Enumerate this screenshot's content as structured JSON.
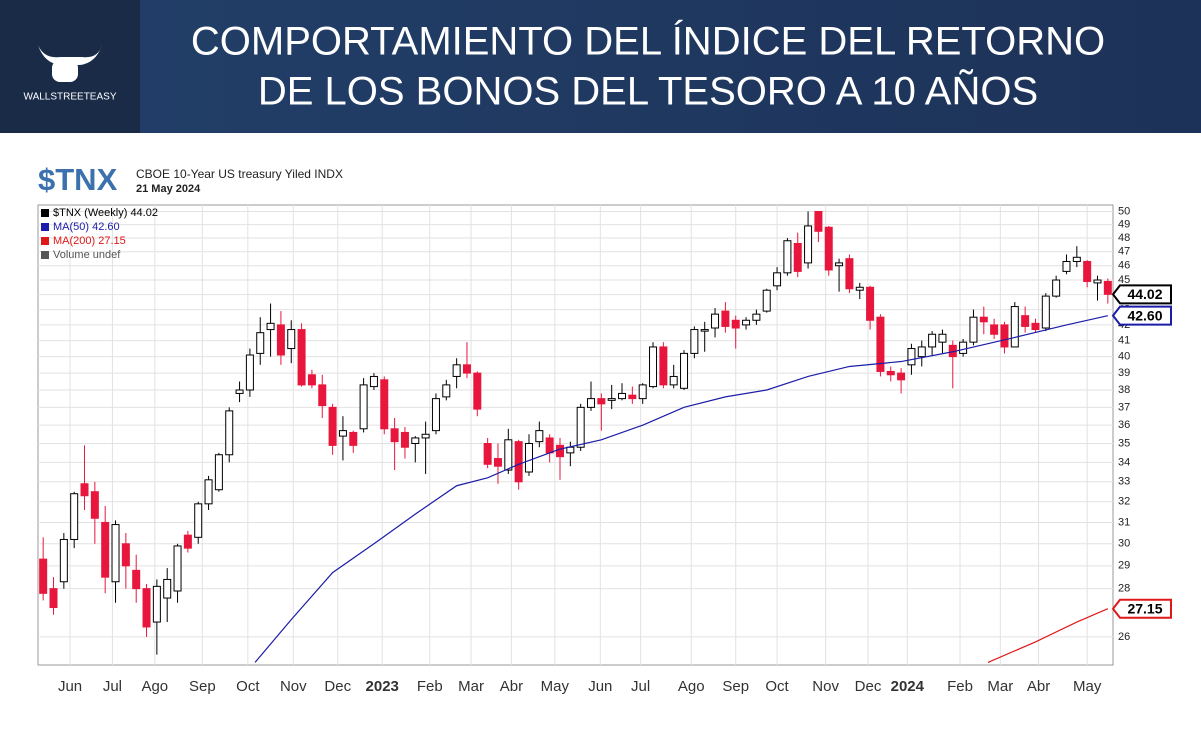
{
  "header": {
    "logo": "WALLSTREETEASY",
    "title_lines": [
      "COMPORTAMIENTO DEL ÍNDICE DEL RETORNO",
      "DE LOS BONOS DEL TESORO A 10 AÑOS"
    ]
  },
  "chart_data": {
    "type": "candlestick",
    "symbol": "$TNX",
    "subtitle": "CBOE 10-Year US treasury Yiled INDX",
    "date": "21 May 2024",
    "name": "$TNX (Weekly)",
    "end_label": "44.02",
    "up_color": "#ffffff",
    "down_color": "#e8163c",
    "volume_note": "Volume undef",
    "ohlc": [
      [
        29.3,
        30.3,
        27.5,
        27.8
      ],
      [
        28.0,
        28.5,
        26.9,
        27.2
      ],
      [
        28.3,
        30.5,
        28.0,
        30.2
      ],
      [
        30.2,
        32.5,
        29.8,
        32.4
      ],
      [
        32.9,
        34.9,
        31.6,
        32.3
      ],
      [
        32.5,
        33.0,
        30.0,
        31.2
      ],
      [
        31.0,
        31.8,
        27.8,
        28.5
      ],
      [
        28.3,
        31.1,
        27.4,
        30.9
      ],
      [
        30.0,
        30.5,
        28.0,
        29.0
      ],
      [
        28.8,
        29.5,
        27.4,
        28.0
      ],
      [
        28.0,
        28.2,
        26.0,
        26.4
      ],
      [
        26.6,
        28.4,
        25.3,
        28.1
      ],
      [
        27.6,
        28.9,
        26.6,
        28.4
      ],
      [
        27.9,
        30.0,
        27.4,
        29.9
      ],
      [
        30.4,
        30.6,
        29.6,
        29.8
      ],
      [
        30.3,
        32.0,
        30.0,
        31.9
      ],
      [
        31.9,
        33.3,
        31.6,
        33.1
      ],
      [
        32.6,
        34.5,
        32.5,
        34.4
      ],
      [
        34.4,
        37.0,
        34.0,
        36.8
      ],
      [
        37.8,
        38.5,
        37.3,
        38.0
      ],
      [
        38.0,
        40.5,
        37.6,
        40.1
      ],
      [
        40.2,
        42.5,
        39.5,
        41.5
      ],
      [
        41.7,
        43.4,
        40.0,
        42.1
      ],
      [
        42.0,
        42.9,
        39.5,
        40.1
      ],
      [
        40.5,
        42.3,
        39.6,
        41.7
      ],
      [
        41.7,
        42.1,
        38.2,
        38.3
      ],
      [
        38.9,
        39.2,
        38.1,
        38.3
      ],
      [
        38.3,
        38.9,
        36.4,
        37.1
      ],
      [
        37.0,
        37.2,
        34.4,
        34.9
      ],
      [
        35.4,
        36.5,
        34.1,
        35.7
      ],
      [
        35.6,
        35.7,
        34.5,
        34.9
      ],
      [
        35.8,
        38.7,
        35.6,
        38.3
      ],
      [
        38.2,
        39.0,
        38.0,
        38.8
      ],
      [
        38.6,
        38.8,
        35.5,
        35.8
      ],
      [
        35.8,
        36.4,
        33.6,
        35.1
      ],
      [
        35.6,
        35.9,
        34.2,
        34.8
      ],
      [
        35.0,
        35.4,
        34.0,
        35.3
      ],
      [
        35.3,
        36.2,
        33.4,
        35.5
      ],
      [
        35.7,
        37.8,
        35.5,
        37.5
      ],
      [
        37.6,
        38.6,
        37.4,
        38.3
      ],
      [
        38.8,
        39.9,
        38.1,
        39.5
      ],
      [
        39.5,
        40.9,
        38.7,
        39.0
      ],
      [
        39.0,
        39.1,
        36.5,
        36.9
      ],
      [
        35.0,
        35.3,
        33.7,
        33.9
      ],
      [
        34.2,
        35.0,
        32.9,
        33.8
      ],
      [
        33.6,
        35.8,
        33.4,
        35.2
      ],
      [
        35.1,
        35.2,
        32.6,
        33.0
      ],
      [
        33.5,
        35.5,
        33.3,
        35.0
      ],
      [
        35.1,
        36.2,
        34.8,
        35.7
      ],
      [
        35.3,
        35.5,
        34.0,
        34.5
      ],
      [
        34.9,
        35.3,
        33.1,
        34.3
      ],
      [
        34.5,
        35.1,
        33.8,
        34.8
      ],
      [
        34.8,
        37.2,
        34.6,
        37.0
      ],
      [
        37.0,
        38.5,
        36.8,
        37.5
      ],
      [
        37.5,
        37.8,
        35.7,
        37.2
      ],
      [
        37.4,
        38.3,
        36.9,
        37.5
      ],
      [
        37.5,
        38.4,
        37.4,
        37.8
      ],
      [
        37.7,
        38.2,
        37.2,
        37.5
      ],
      [
        37.5,
        38.4,
        37.2,
        38.3
      ],
      [
        38.2,
        40.9,
        38.1,
        40.6
      ],
      [
        40.6,
        40.9,
        38.1,
        38.3
      ],
      [
        38.3,
        39.5,
        38.1,
        38.8
      ],
      [
        38.1,
        40.4,
        38.0,
        40.2
      ],
      [
        40.2,
        41.9,
        39.9,
        41.7
      ],
      [
        41.6,
        42.2,
        40.3,
        41.7
      ],
      [
        41.8,
        43.1,
        41.2,
        42.7
      ],
      [
        42.9,
        43.5,
        41.5,
        41.9
      ],
      [
        42.3,
        42.6,
        40.5,
        41.8
      ],
      [
        42.0,
        42.5,
        41.7,
        42.3
      ],
      [
        42.3,
        43.0,
        42.0,
        42.7
      ],
      [
        42.9,
        44.4,
        42.8,
        44.3
      ],
      [
        44.6,
        45.9,
        44.3,
        45.5
      ],
      [
        45.5,
        48.0,
        45.3,
        47.8
      ],
      [
        47.6,
        48.4,
        45.2,
        45.6
      ],
      [
        46.2,
        50.0,
        45.8,
        48.9
      ],
      [
        50.0,
        50.0,
        47.7,
        48.5
      ],
      [
        48.8,
        48.9,
        45.3,
        45.7
      ],
      [
        46.0,
        46.5,
        44.2,
        46.2
      ],
      [
        46.5,
        46.8,
        44.1,
        44.4
      ],
      [
        44.3,
        44.8,
        43.7,
        44.5
      ],
      [
        44.5,
        44.6,
        41.7,
        42.3
      ],
      [
        42.5,
        42.7,
        38.8,
        39.1
      ],
      [
        39.1,
        39.4,
        38.5,
        38.9
      ],
      [
        39.0,
        39.3,
        37.8,
        38.6
      ],
      [
        39.5,
        40.8,
        38.9,
        40.5
      ],
      [
        40.0,
        41.0,
        39.4,
        40.6
      ],
      [
        40.6,
        41.6,
        40.1,
        41.4
      ],
      [
        40.9,
        41.7,
        40.2,
        41.4
      ],
      [
        40.7,
        41.0,
        38.1,
        40.0
      ],
      [
        40.2,
        41.1,
        40.0,
        40.9
      ],
      [
        40.9,
        43.0,
        40.7,
        42.5
      ],
      [
        42.5,
        43.2,
        41.4,
        42.2
      ],
      [
        42.0,
        42.4,
        41.1,
        41.4
      ],
      [
        42.0,
        42.2,
        40.2,
        40.6
      ],
      [
        40.6,
        43.5,
        40.6,
        43.2
      ],
      [
        42.6,
        43.2,
        41.5,
        41.9
      ],
      [
        42.1,
        42.4,
        41.5,
        41.7
      ],
      [
        41.8,
        44.1,
        41.6,
        43.9
      ],
      [
        43.9,
        45.3,
        43.8,
        45.0
      ],
      [
        45.6,
        46.8,
        45.4,
        46.3
      ],
      [
        46.3,
        47.4,
        45.9,
        46.6
      ],
      [
        46.3,
        46.4,
        44.5,
        44.9
      ],
      [
        44.8,
        45.3,
        43.6,
        45.0
      ],
      [
        44.9,
        45.1,
        43.4,
        44.02
      ]
    ],
    "lines": [
      {
        "name": "MA(50)",
        "color": "#1c1ca8",
        "end_label": "42.60",
        "x": [
          20.5,
          24,
          28,
          32,
          36,
          40,
          43,
          46,
          50,
          54,
          58,
          62,
          66,
          70,
          74,
          78,
          83,
          88,
          94,
          99,
          103
        ],
        "values": [
          25.0,
          26.7,
          28.7,
          30.0,
          31.4,
          32.8,
          33.2,
          33.9,
          34.7,
          35.2,
          36.0,
          37.0,
          37.6,
          38.0,
          38.8,
          39.4,
          39.7,
          40.3,
          41.2,
          42.0,
          42.6
        ]
      },
      {
        "name": "MA(200)",
        "color": "#e01818",
        "end_label": "27.15",
        "x": [
          91.4,
          96,
          100,
          103
        ],
        "values": [
          25.0,
          25.8,
          26.6,
          27.15
        ]
      }
    ],
    "log_scale": true,
    "grid": true,
    "xlim": [
      -0.5,
      103.5
    ],
    "ylim": [
      24.9,
      50.5
    ],
    "yticks": [
      26,
      28,
      29,
      30,
      31,
      32,
      33,
      34,
      35,
      36,
      37,
      38,
      39,
      40,
      41,
      42,
      43,
      44,
      45,
      46,
      47,
      48,
      49,
      50
    ],
    "xticks": [
      {
        "value": 2.6,
        "label": "Jun"
      },
      {
        "value": 6.7,
        "label": "Jul"
      },
      {
        "value": 10.8,
        "label": "Ago"
      },
      {
        "value": 15.4,
        "label": "Sep"
      },
      {
        "value": 19.8,
        "label": "Oct"
      },
      {
        "value": 24.2,
        "label": "Nov"
      },
      {
        "value": 28.5,
        "label": "Dec"
      },
      {
        "value": 32.8,
        "label": "2023"
      },
      {
        "value": 37.4,
        "label": "Feb"
      },
      {
        "value": 41.4,
        "label": "Mar"
      },
      {
        "value": 45.3,
        "label": "Abr"
      },
      {
        "value": 49.5,
        "label": "May"
      },
      {
        "value": 53.9,
        "label": "Jun"
      },
      {
        "value": 57.8,
        "label": "Jul"
      },
      {
        "value": 62.7,
        "label": "Ago"
      },
      {
        "value": 67,
        "label": "Sep"
      },
      {
        "value": 71,
        "label": "Oct"
      },
      {
        "value": 75.7,
        "label": "Nov"
      },
      {
        "value": 79.8,
        "label": "Dec"
      },
      {
        "value": 83.6,
        "label": "2024"
      },
      {
        "value": 88.7,
        "label": "Feb"
      },
      {
        "value": 92.6,
        "label": "Mar"
      },
      {
        "value": 96.3,
        "label": "Abr"
      },
      {
        "value": 101,
        "label": "May"
      }
    ]
  }
}
